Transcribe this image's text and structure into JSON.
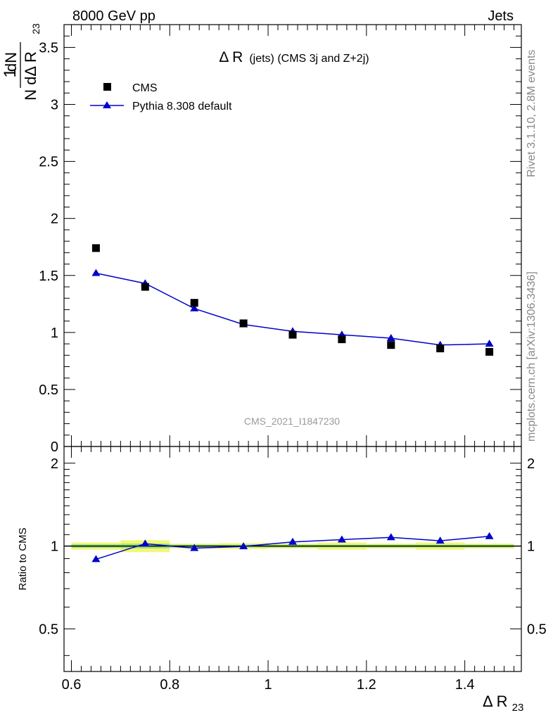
{
  "header": {
    "left": "8000 GeV pp",
    "right": "Jets"
  },
  "side_labels": {
    "rivet": "Rivet 3.1.10,  2.8M events",
    "source": "mcplots.cern.ch [arXiv:1306.3436]"
  },
  "watermark": "CMS_2021_I1847230",
  "colors": {
    "data": "#000000",
    "mc": "#0000cc",
    "band_inner": "#9be37a",
    "band_outer": "#f2f77a",
    "axis": "#000000"
  },
  "chart_data": [
    {
      "type": "scatter",
      "title_main": "Δ R",
      "title_sub": "(jets) (CMS 3j and Z+2j)",
      "ylabel_frac": "1",
      "ylabel_num": "dN",
      "ylabel_den": "N dΔ R",
      "ylabel_den_sub": "23",
      "xlim": [
        0.585,
        1.515
      ],
      "ylim": [
        0,
        3.7
      ],
      "y_ticks": [
        0,
        0.5,
        1,
        1.5,
        2,
        2.5,
        3,
        3.5
      ],
      "y_tick_labels": [
        "0",
        "0.5",
        "1",
        "1.5",
        "2",
        "2.5",
        "3",
        "3.5"
      ],
      "legend": [
        {
          "name": "CMS",
          "marker": "square"
        },
        {
          "name": "Pythia 8.308 default",
          "marker": "triangle"
        }
      ],
      "x": [
        0.65,
        0.75,
        0.85,
        0.95,
        1.05,
        1.15,
        1.25,
        1.35,
        1.45
      ],
      "series": [
        {
          "name": "CMS",
          "values": [
            1.74,
            1.4,
            1.26,
            1.08,
            0.98,
            0.94,
            0.89,
            0.86,
            0.83
          ]
        },
        {
          "name": "Pythia 8.308 default",
          "values": [
            1.52,
            1.43,
            1.21,
            1.07,
            1.01,
            0.98,
            0.95,
            0.89,
            0.9
          ]
        }
      ]
    },
    {
      "type": "line",
      "ylabel": "Ratio to CMS",
      "xlabel_main": "Δ R",
      "xlabel_sub": "23",
      "xlim": [
        0.585,
        1.515
      ],
      "ylim": [
        0.35,
        2.3
      ],
      "y_ticks": [
        0.5,
        1,
        2
      ],
      "y_tick_labels": [
        "0.5",
        "1",
        "2"
      ],
      "x_ticks": [
        0.6,
        0.8,
        1.0,
        1.2,
        1.4
      ],
      "x_tick_labels": [
        "0.6",
        "0.8",
        "1",
        "1.2",
        "1.4"
      ],
      "x": [
        0.65,
        0.75,
        0.85,
        0.95,
        1.05,
        1.15,
        1.25,
        1.35,
        1.45
      ],
      "series": [
        {
          "name": "Pythia 8.308 default",
          "values": [
            0.895,
            1.02,
            0.982,
            0.997,
            1.035,
            1.055,
            1.075,
            1.045,
            1.085
          ]
        }
      ],
      "band": {
        "x_edges": [
          0.6,
          0.7,
          0.8,
          0.9,
          1.0,
          1.1,
          1.2,
          1.3,
          1.4,
          1.5
        ],
        "inner": [
          0.015,
          0.02,
          0.012,
          0.012,
          0.012,
          0.012,
          0.012,
          0.012,
          0.012
        ],
        "outer": [
          0.03,
          0.05,
          0.02,
          0.025,
          0.02,
          0.03,
          0.02,
          0.03,
          0.02
        ]
      }
    }
  ]
}
